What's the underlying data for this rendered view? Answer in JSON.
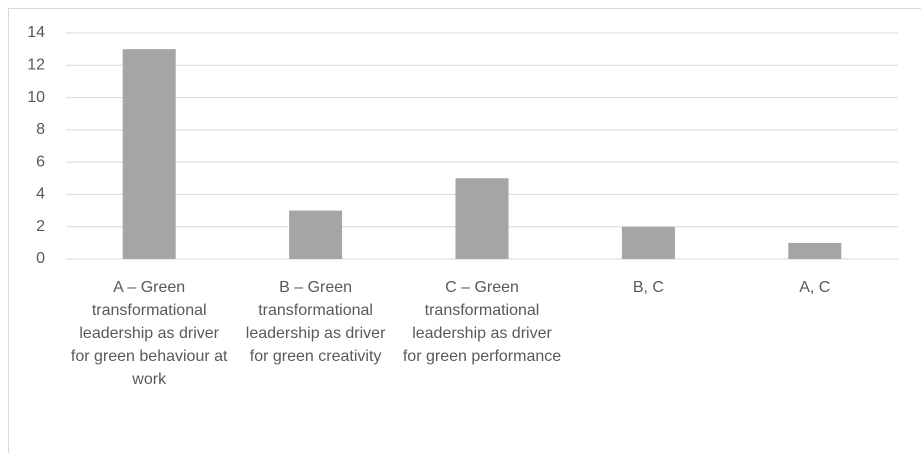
{
  "chart_data": {
    "type": "bar",
    "categories": [
      "A – Green transformational leadership as driver for green behaviour at work",
      "B – Green transformational leadership as driver for green creativity",
      "C – Green transformational leadership as driver for green performance",
      "B, C",
      "A, C"
    ],
    "values": [
      13,
      3,
      5,
      2,
      1
    ],
    "color": "#a5a5a5",
    "ylim": [
      0,
      14
    ],
    "yticks": [
      0,
      2,
      4,
      6,
      8,
      10,
      12,
      14
    ],
    "grid": true
  }
}
